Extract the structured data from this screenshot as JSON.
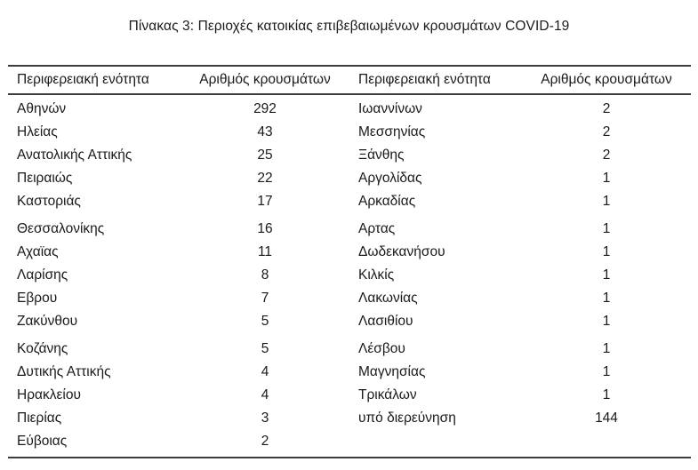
{
  "title": "Πίνακας 3: Περιοχές κατοικίας επιβεβαιωμένων κρουσμάτων COVID-19",
  "table": {
    "headers": [
      "Περιφερειακή ενότητα",
      "Αριθμός κρουσμάτων",
      "Περιφερειακή ενότητα",
      "Αριθμός κρουσμάτων"
    ],
    "left_groups": [
      [
        {
          "region": "Αθηνών",
          "cases": "292"
        },
        {
          "region": "Ηλείας",
          "cases": "43"
        },
        {
          "region": "Ανατολικής Αττικής",
          "cases": "25"
        },
        {
          "region": "Πειραιώς",
          "cases": "22"
        },
        {
          "region": "Καστοριάς",
          "cases": "17"
        }
      ],
      [
        {
          "region": "Θεσσαλονίκης",
          "cases": "16"
        },
        {
          "region": "Αχαϊας",
          "cases": "11"
        },
        {
          "region": "Λαρίσης",
          "cases": "8"
        },
        {
          "region": "Εβρου",
          "cases": "7"
        },
        {
          "region": "Ζακύνθου",
          "cases": "5"
        }
      ],
      [
        {
          "region": "Κοζάνης",
          "cases": "5"
        },
        {
          "region": "Δυτικής Αττικής",
          "cases": "4"
        },
        {
          "region": "Ηρακλείου",
          "cases": "4"
        },
        {
          "region": "Πιερίας",
          "cases": "3"
        },
        {
          "region": "Εύβοιας",
          "cases": "2"
        }
      ]
    ],
    "right_groups": [
      [
        {
          "region": "Ιωαννίνων",
          "cases": "2"
        },
        {
          "region": "Μεσσηνίας",
          "cases": "2"
        },
        {
          "region": "Ξάνθης",
          "cases": "2"
        },
        {
          "region": "Αργολίδας",
          "cases": "1"
        },
        {
          "region": "Αρκαδίας",
          "cases": "1"
        }
      ],
      [
        {
          "region": "Αρτας",
          "cases": "1"
        },
        {
          "region": "Δωδεκανήσου",
          "cases": "1"
        },
        {
          "region": "Κιλκίς",
          "cases": "1"
        },
        {
          "region": "Λακωνίας",
          "cases": "1"
        },
        {
          "region": "Λασιθίου",
          "cases": "1"
        }
      ],
      [
        {
          "region": "Λέσβου",
          "cases": "1"
        },
        {
          "region": "Μαγνησίας",
          "cases": "1"
        },
        {
          "region": "Τρικάλων",
          "cases": "1"
        },
        {
          "region": "υπό διερεύνηση",
          "cases": "144"
        }
      ]
    ]
  },
  "colors": {
    "rule": "#3c3c3c",
    "text": "#1a1a1a",
    "background": "#ffffff"
  }
}
